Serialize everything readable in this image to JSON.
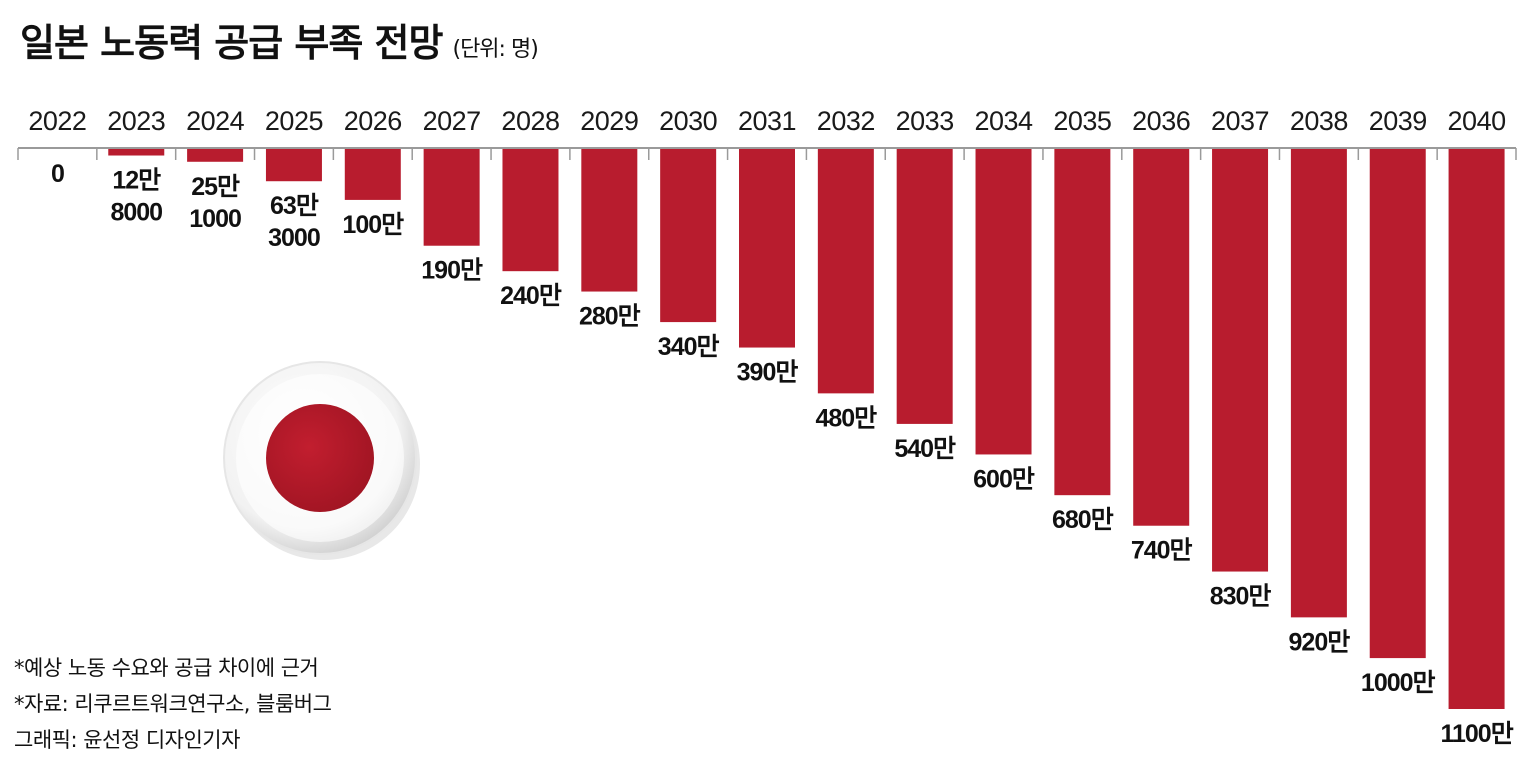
{
  "title": "일본 노동력 공급 부족 전망",
  "unit": "(단위: 명)",
  "chart_data": {
    "type": "bar",
    "categories": [
      "2022",
      "2023",
      "2024",
      "2025",
      "2026",
      "2027",
      "2028",
      "2029",
      "2030",
      "2031",
      "2032",
      "2033",
      "2034",
      "2035",
      "2036",
      "2037",
      "2038",
      "2039",
      "2040"
    ],
    "values": [
      0,
      128000,
      251000,
      633000,
      1000000,
      1900000,
      2400000,
      2800000,
      3400000,
      3900000,
      4800000,
      5400000,
      6000000,
      6800000,
      7400000,
      8300000,
      9200000,
      10000000,
      11000000
    ],
    "data_labels": [
      [
        "0"
      ],
      [
        "12만",
        "8000"
      ],
      [
        "25만",
        "1000"
      ],
      [
        "63만",
        "3000"
      ],
      [
        "100만"
      ],
      [
        "190만"
      ],
      [
        "240만"
      ],
      [
        "280만"
      ],
      [
        "340만"
      ],
      [
        "390만"
      ],
      [
        "480만"
      ],
      [
        "540만"
      ],
      [
        "600만"
      ],
      [
        "680만"
      ],
      [
        "740만"
      ],
      [
        "830만"
      ],
      [
        "920만"
      ],
      [
        "1000만"
      ],
      [
        "1100만"
      ]
    ],
    "bar_direction": "downward",
    "bar_color": "#b81c2e"
  },
  "notes": {
    "basis": "*예상 노동 수요와 공급 차이에 근거",
    "source": "*자료: 리쿠르트워크연구소, 블룸버그",
    "credit": "그래픽: 윤선정 디자인기자"
  }
}
